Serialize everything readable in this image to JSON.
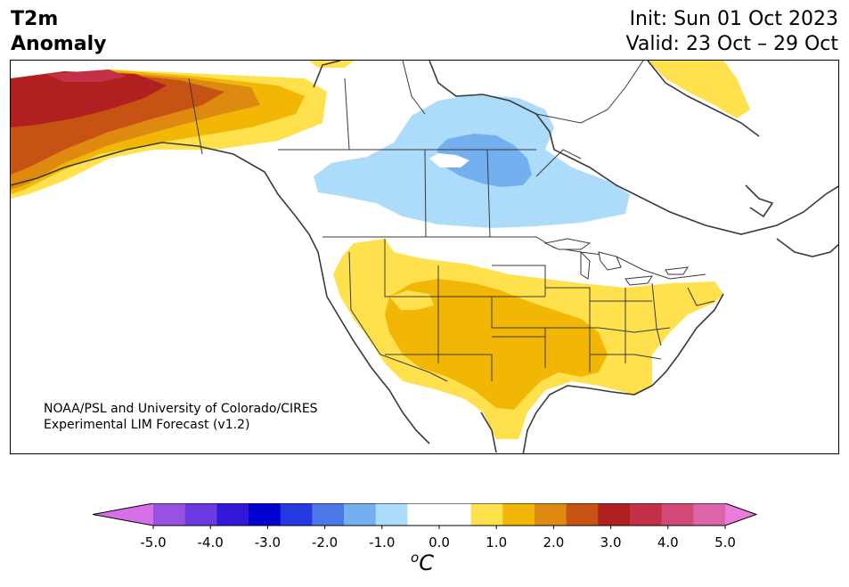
{
  "header": {
    "variable_line1": "T2m",
    "variable_line2": "Anomaly",
    "init": "Init: Sun 01 Oct 2023",
    "valid": "Valid: 23 Oct – 29 Oct"
  },
  "credit": {
    "line1": "NOAA/PSL and University of Colorado/CIRES",
    "line2": "Experimental LIM Forecast (v1.2)"
  },
  "colorbar": {
    "unit_sup": "o",
    "unit": "C",
    "ticks": [
      "-5.0",
      "-4.0",
      "-3.0",
      "-2.0",
      "-1.0",
      "0.0",
      "1.0",
      "2.0",
      "3.0",
      "4.0",
      "5.0"
    ],
    "under_color": "#d66fe8",
    "over_color": "#e87ddc",
    "colors": [
      "#d66fe8",
      "#9a50e0",
      "#6a3ce0",
      "#3418d8",
      "#0000d0",
      "#2638e0",
      "#4c78e8",
      "#74b0f0",
      "#acdcfa",
      "#ffffff",
      "#ffffff",
      "#ffe14d",
      "#f2b705",
      "#de8a10",
      "#c65214",
      "#b02020",
      "#c43048",
      "#d24a78",
      "#dc64a8",
      "#e87ddc"
    ]
  },
  "legend_colors": {
    "cold_light": "#acdcfa",
    "cold_medium": "#74b0f0",
    "warm_light": "#ffe14d",
    "warm_medium": "#f2b705",
    "warm_orange": "#de8a10",
    "warm_dark_orange": "#c65214",
    "warm_red": "#b02020",
    "warm_crimson": "#c43048"
  }
}
